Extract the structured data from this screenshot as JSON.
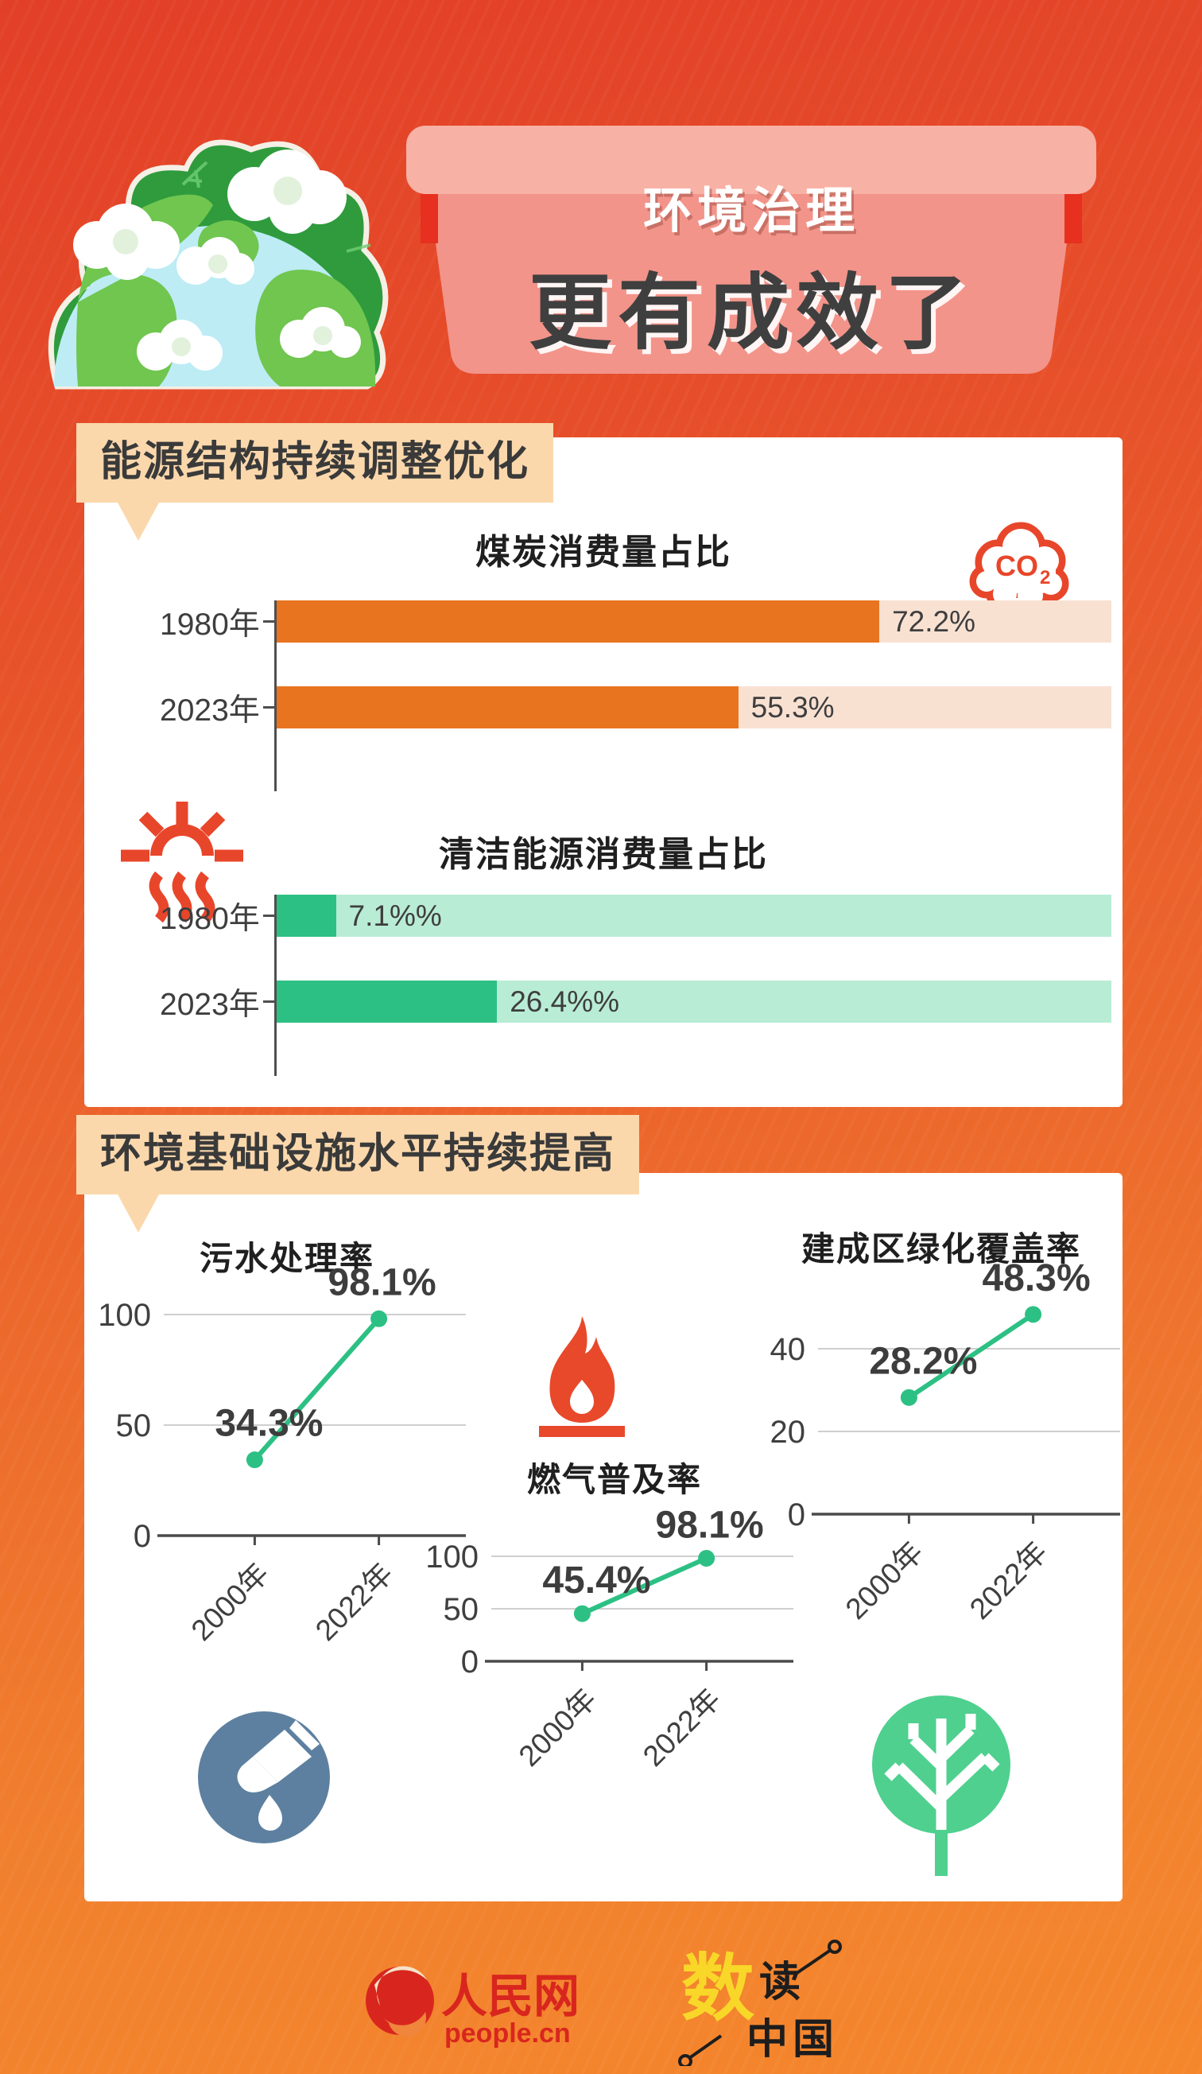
{
  "header": {
    "title_line1": "环境治理",
    "title_line2": "更有成效了"
  },
  "sections": {
    "energy_badge": "能源结构持续调整优化",
    "infra_badge": "环境基础设施水平持续提高"
  },
  "icons": {
    "co2_main": "CO",
    "co2_sub": "2"
  },
  "colors": {
    "accent_orange": "#e87420",
    "orange_track": "#f9e1d2",
    "accent_green": "#2dc084",
    "green_track": "#b9ecd5",
    "badge_bg": "#fbd8ac",
    "icon_red": "#e8462a",
    "water_blue": "#5d80a0",
    "tree_green": "#4fd08f",
    "people_red": "#d8261e",
    "shudu_yellow": "#f8d728"
  },
  "footer": {
    "people_name": "人民网",
    "people_url": "people.cn",
    "shudu_char1": "数",
    "shudu_char2": "读",
    "shudu_char3": "中国"
  },
  "chart_data": [
    {
      "id": "coal",
      "type": "bar",
      "title": "煤炭消费量占比",
      "categories": [
        "1980年",
        "2023年"
      ],
      "values": [
        72.2,
        55.3
      ],
      "value_labels": [
        "72.2%",
        "55.3%"
      ],
      "xlim": [
        0,
        100
      ],
      "bar_color": "#e87420",
      "track_color": "#f9e1d2"
    },
    {
      "id": "clean_energy",
      "type": "bar",
      "title": "清洁能源消费量占比",
      "categories": [
        "1980年",
        "2023年"
      ],
      "values": [
        7.1,
        26.4
      ],
      "value_labels": [
        "7.1%%",
        "26.4%%"
      ],
      "xlim": [
        0,
        100
      ],
      "bar_color": "#2dc084",
      "track_color": "#b9ecd5"
    },
    {
      "id": "sewage_treatment_rate",
      "type": "line",
      "title": "污水处理率",
      "x": [
        "2000年",
        "2022年"
      ],
      "values": [
        34.3,
        98.1
      ],
      "value_labels": [
        "34.3%",
        "98.1%"
      ],
      "yticks": [
        0,
        50,
        100
      ],
      "ylim": [
        0,
        115
      ],
      "grid": true,
      "line_color": "#2dc084"
    },
    {
      "id": "gas_penetration_rate",
      "type": "line",
      "title": "燃气普及率",
      "x": [
        "2000年",
        "2022年"
      ],
      "values": [
        45.4,
        98.1
      ],
      "value_labels": [
        "45.4%",
        "98.1%"
      ],
      "yticks": [
        0,
        50,
        100
      ],
      "ylim": [
        0,
        115
      ],
      "grid": true,
      "line_color": "#2dc084"
    },
    {
      "id": "built_area_green_coverage",
      "type": "line",
      "title": "建成区绿化覆盖率",
      "x": [
        "2000年",
        "2022年"
      ],
      "values": [
        28.2,
        48.3
      ],
      "value_labels": [
        "28.2%",
        "48.3%"
      ],
      "yticks": [
        0,
        20,
        40
      ],
      "ylim": [
        0,
        52
      ],
      "grid": true,
      "line_color": "#2dc084"
    }
  ]
}
